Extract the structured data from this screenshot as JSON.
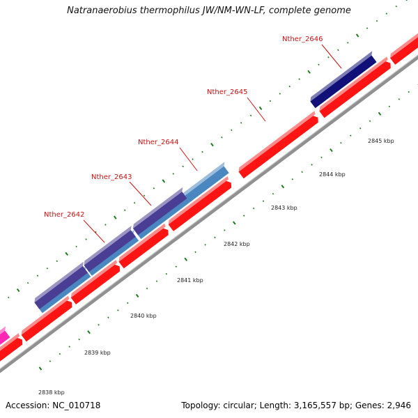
{
  "title": "Natranaerobius thermophilus JW/NM-WN-LF, complete genome",
  "footer": {
    "accession": "Accession: NC_010718",
    "summary": "Topology: circular; Length: 3,165,557 bp; Genes: 2,946"
  },
  "colors": {
    "cds": "#ff1414",
    "cds_top": "#ff8a8a",
    "backbone": "#909090",
    "gene_navy": "#101078",
    "gene_purple": "#4a3e94",
    "gene_steel": "#4a86c0",
    "gene_magenta": "#ff28b4",
    "tick": "#1e7a1e",
    "label": "#cc1111"
  },
  "ticks": [
    "2838 kbp",
    "2839 kbp",
    "2840 kbp",
    "2841 kbp",
    "2842 kbp",
    "2843 kbp",
    "2844 kbp",
    "2845 kbp"
  ],
  "gene_labels": [
    "Nther_2642",
    "Nther_2643",
    "Nther_2644",
    "Nther_2645",
    "Nther_2646"
  ]
}
